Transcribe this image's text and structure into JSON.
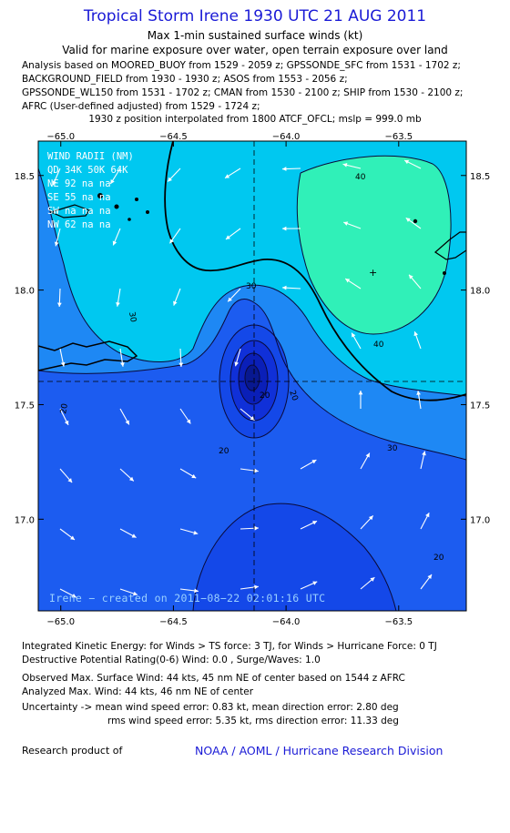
{
  "header": {
    "title": "Tropical Storm Irene 1930 UTC 21 AUG 2011",
    "subtitle": "Max 1-min sustained surface winds (kt)",
    "validity": "Valid for marine exposure over water, open terrain exposure over land",
    "analysis_lines": [
      "Analysis based on MOORED_BUOY from 1529 - 2059 z; GPSSONDE_SFC from 1531 - 1702 z;",
      "BACKGROUND_FIELD from 1930 - 1930 z; ASOS from 1553 - 2056 z;",
      "GPSSONDE_WL150 from 1531 - 1702 z; CMAN from 1530 - 2100 z; SHIP from 1530 - 2100 z;",
      "AFRC (User-defined adjusted) from 1529 - 1724 z;"
    ],
    "position_note": "1930 z position interpolated from 1800 ATCF_OFCL; mslp = 999.0 mb"
  },
  "map": {
    "lon_ticks": [
      "−65.0",
      "−64.5",
      "−64.0",
      "−63.5"
    ],
    "lat_ticks": [
      "18.5",
      "18.0",
      "17.5",
      "17.0"
    ],
    "lon_range": [
      -65.1,
      -63.2
    ],
    "lat_range": [
      16.6,
      18.65
    ],
    "center": {
      "lon": -64.0,
      "lat": 17.6
    },
    "contour_labels": [
      "40",
      "30",
      "40",
      "30",
      "20",
      "20",
      "20",
      "30",
      "20",
      "20"
    ],
    "wind_radii": {
      "title": "WIND RADII (NM)",
      "header": "QD  34K  50K  64K",
      "rows": [
        {
          "qd": "NE",
          "r34": "92",
          "r50": "na",
          "r64": "na"
        },
        {
          "qd": "SE",
          "r34": "55",
          "r50": "na",
          "r64": "na"
        },
        {
          "qd": "SW",
          "r34": "na",
          "r50": "na",
          "r64": "na"
        },
        {
          "qd": "NW",
          "r34": "62",
          "r50": "na",
          "r64": "na"
        }
      ]
    },
    "credit": "Irene − created on 2011−08−22 02:01:16 UTC",
    "colors": {
      "band_10_20": "#1c5cf0",
      "band_20_30": "#1e88f4",
      "band_30_40": "#00c8f0",
      "band_40_50": "#30f0b8",
      "center_ring_1": "#1448e8",
      "center_ring_2": "#1030d8",
      "center_ring_3": "#0a1fb8",
      "center_core": "#081890"
    }
  },
  "stats": {
    "ike": "Integrated Kinetic Energy:  for Winds > TS force: 3 TJ,  for Winds > Hurricane Force: 0 TJ",
    "dpr": "Destructive Potential Rating(0-6)   Wind: 0.0 , Surge/Waves: 1.0",
    "observed": "Observed Max. Surface Wind: 44 kts, 45 nm NE of center based on 1544 z AFRC",
    "analyzed": "Analyzed Max. Wind: 44 kts, 46 nm NE of center",
    "uncertainty_1": "Uncertainty -> mean wind speed error: 0.83 kt,   mean direction error: 2.80 deg",
    "uncertainty_2": "rms wind speed error: 5.35 kt,   rms direction error: 11.33 deg"
  },
  "footer": {
    "left": "Research product of",
    "right": "NOAA / AOML / Hurricane Research Division"
  }
}
